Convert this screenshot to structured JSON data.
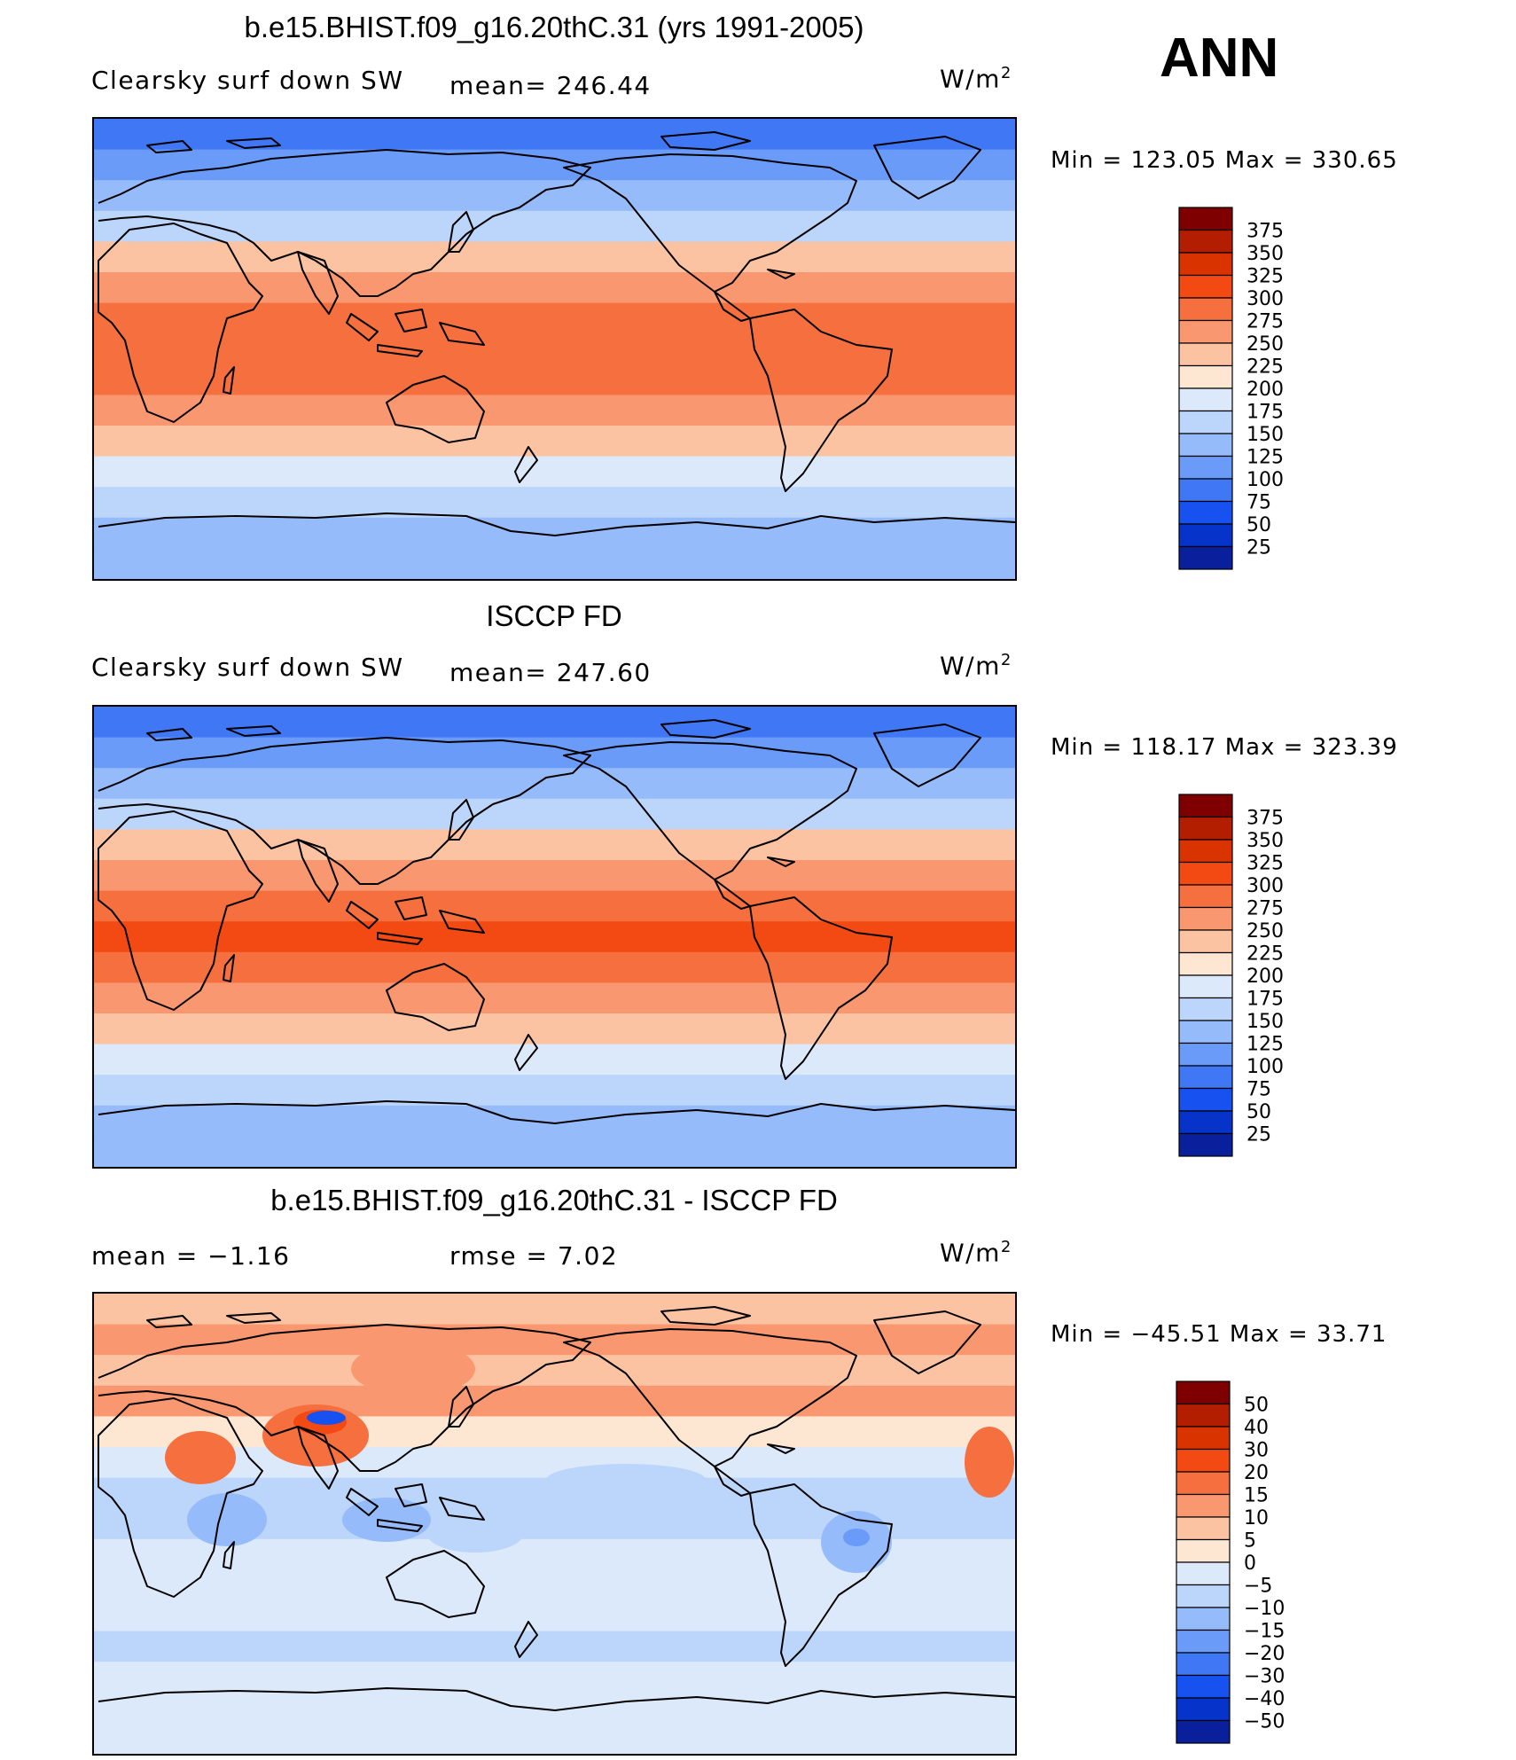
{
  "season": "ANN",
  "panels": [
    {
      "title": "b.e15.BHIST.f09_g16.20thC.31 (yrs 1991-2005)",
      "left_label": "Clearsky surf down SW",
      "center_label": "mean= 246.44",
      "units": "W/m",
      "units_sup": "2",
      "minmax": "Min = 123.05 Max = 330.65"
    },
    {
      "title": "ISCCP FD",
      "left_label": "Clearsky surf down SW",
      "center_label": "mean= 247.60",
      "units": "W/m",
      "units_sup": "2",
      "minmax": "Min = 118.17 Max = 323.39"
    },
    {
      "title": "b.e15.BHIST.f09_g16.20thC.31 - ISCCP FD",
      "left_label": "mean =   −1.16",
      "center_label": "rmse =     7.02",
      "units": "W/m",
      "units_sup": "2",
      "minmax": "Min = −45.51  Max =   33.71"
    }
  ],
  "colorbars": {
    "abs": {
      "labels": [
        "375",
        "350",
        "325",
        "300",
        "275",
        "250",
        "225",
        "200",
        "175",
        "150",
        "125",
        "100",
        "75",
        "50",
        "25"
      ],
      "colors": [
        "#7f0000",
        "#b31e00",
        "#d93300",
        "#f24a12",
        "#f56f3f",
        "#f99770",
        "#fcc3a3",
        "#fde6d2",
        "#dce9fb",
        "#bcd5fb",
        "#95bbfa",
        "#6b9bf8",
        "#3f77f5",
        "#1752f0",
        "#0633c9",
        "#0a1f9c"
      ]
    },
    "diff": {
      "labels": [
        "50",
        "40",
        "30",
        "20",
        "15",
        "10",
        "5",
        "0",
        "−5",
        "−10",
        "−15",
        "−20",
        "−30",
        "−40",
        "−50"
      ],
      "colors": [
        "#7f0000",
        "#b31e00",
        "#d93300",
        "#f24a12",
        "#f56f3f",
        "#f99770",
        "#fcc3a3",
        "#fde6d2",
        "#dce9fb",
        "#bcd5fb",
        "#95bbfa",
        "#6b9bf8",
        "#3f77f5",
        "#1752f0",
        "#0633c9",
        "#0a1f9c"
      ]
    }
  },
  "map_bands": {
    "model": [
      "#3f77f5",
      "#6b9bf8",
      "#95bbfa",
      "#bcd5fb",
      "#fcc3a3",
      "#f99770",
      "#f56f3f",
      "#f56f3f",
      "#f56f3f",
      "#f99770",
      "#fcc3a3",
      "#dce9fb",
      "#bcd5fb",
      "#95bbfa",
      "#95bbfa"
    ],
    "obs": [
      "#3f77f5",
      "#6b9bf8",
      "#95bbfa",
      "#bcd5fb",
      "#fcc3a3",
      "#f99770",
      "#f56f3f",
      "#f24a12",
      "#f56f3f",
      "#f99770",
      "#fcc3a3",
      "#dce9fb",
      "#bcd5fb",
      "#95bbfa",
      "#95bbfa"
    ],
    "diff": [
      "#fcc3a3",
      "#f99770",
      "#fcc3a3",
      "#f99770",
      "#fde6d2",
      "#dce9fb",
      "#bcd5fb",
      "#bcd5fb",
      "#dce9fb",
      "#dce9fb",
      "#dce9fb",
      "#bcd5fb",
      "#dce9fb",
      "#dce9fb",
      "#dce9fb"
    ]
  }
}
